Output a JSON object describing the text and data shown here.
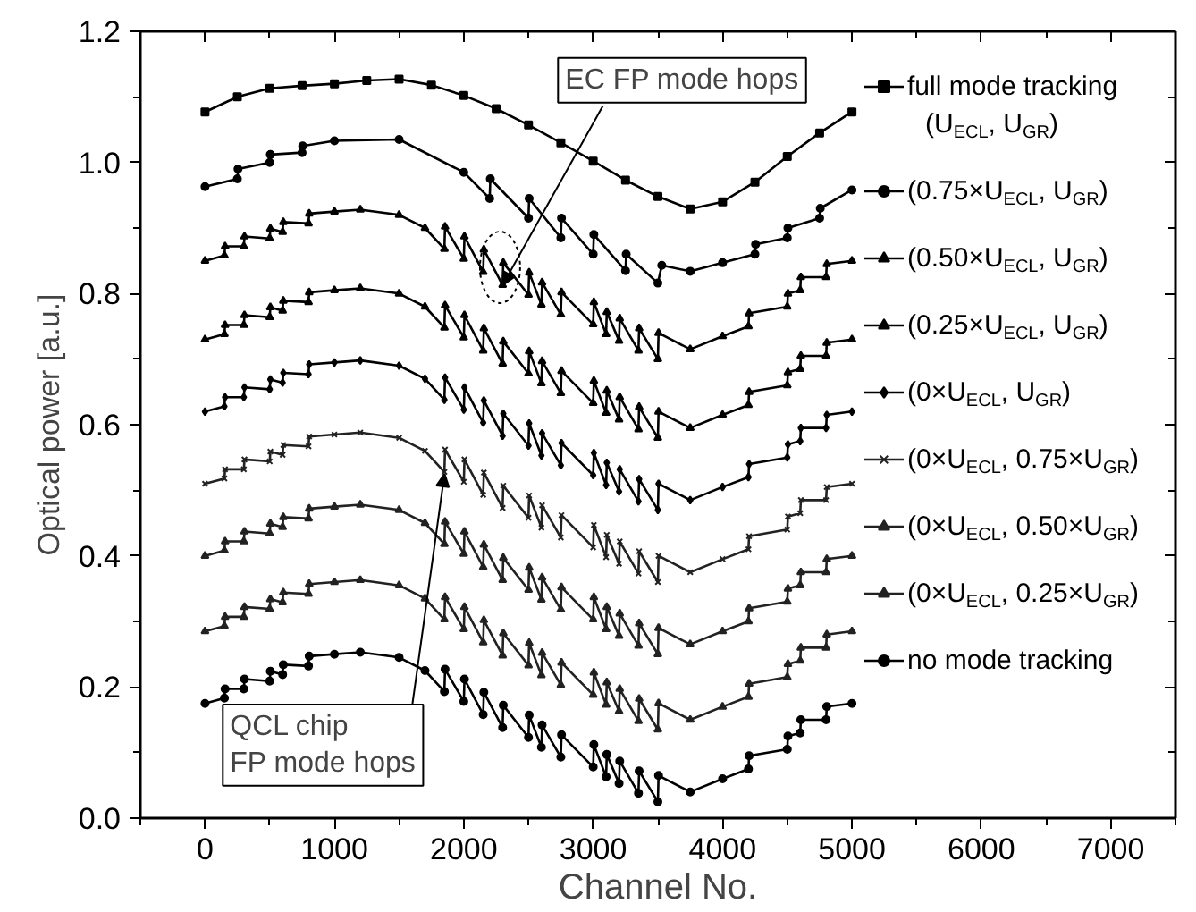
{
  "chart_data": {
    "type": "line",
    "xlabel": "Channel No.",
    "ylabel": "Optical power [a.u.]",
    "xlim": [
      -500,
      7500
    ],
    "ylim": [
      0,
      1.2
    ],
    "xticks": [
      {
        "value": -500,
        "label": null
      },
      0,
      {
        "value": 500,
        "label": null
      },
      1000,
      {
        "value": 1500,
        "label": null
      },
      2000,
      {
        "value": 2500,
        "label": null
      },
      3000,
      {
        "value": 3500,
        "label": null
      },
      4000,
      {
        "value": 4500,
        "label": null
      },
      5000,
      {
        "value": 5500,
        "label": null
      },
      6000,
      {
        "value": 6500,
        "label": null
      },
      7000,
      {
        "value": 7500,
        "label": null
      }
    ],
    "yticks": [
      {
        "value": 0,
        "label": "0.0"
      },
      {
        "value": 0.1,
        "label": null
      },
      {
        "value": 0.2,
        "label": "0.2"
      },
      {
        "value": 0.3,
        "label": null
      },
      {
        "value": 0.4,
        "label": "0.4"
      },
      {
        "value": 0.5,
        "label": null
      },
      {
        "value": 0.6,
        "label": "0.6"
      },
      {
        "value": 0.7,
        "label": null
      },
      {
        "value": 0.8,
        "label": "0.8"
      },
      {
        "value": 0.9,
        "label": null
      },
      {
        "value": 1.0,
        "label": "1.0"
      },
      {
        "value": 1.1,
        "label": null
      },
      {
        "value": 1.2,
        "label": "1.2"
      }
    ],
    "grid": false,
    "legend": "right",
    "line_style": "solid",
    "annotations": [
      {
        "text": "EC FP mode hops",
        "x": 2300,
        "y": 0.813
      },
      {
        "text": "QCL chip\nFP mode hops",
        "x": 1851,
        "y": 0.525
      }
    ],
    "x": [
      0,
      150,
      155,
      300,
      305,
      500,
      505,
      600,
      605,
      800,
      805,
      1000,
      1200,
      1500,
      1700,
      1850,
      1855,
      2000,
      2005,
      2150,
      2155,
      2300,
      2305,
      2500,
      2505,
      2600,
      2605,
      2750,
      2755,
      3000,
      3005,
      3100,
      3105,
      3200,
      3205,
      3350,
      3355,
      3500,
      3505,
      3750,
      4000,
      4200,
      4205,
      4500,
      4505,
      4600,
      4605,
      4800,
      4805,
      5000
    ],
    "series": [
      {
        "name": "full mode tracking\n(U$_{ECL}$, U$_{GR}$)",
        "color": "#000000",
        "marker": "square",
        "x": [
          0,
          250,
          500,
          750,
          1000,
          1250,
          1500,
          1750,
          2000,
          2250,
          2500,
          2750,
          3000,
          3250,
          3500,
          3750,
          4000,
          4250,
          4500,
          4750,
          5000
        ],
        "values": [
          1.077,
          1.1,
          1.113,
          1.117,
          1.12,
          1.125,
          1.127,
          1.118,
          1.102,
          1.082,
          1.057,
          1.03,
          1.002,
          0.973,
          0.948,
          0.929,
          0.94,
          0.97,
          1.009,
          1.045,
          1.077
        ]
      },
      {
        "name": "(0.75×U$_{ECL}$, U$_{GR}$)",
        "color": "#000000",
        "marker": "circle",
        "x": [
          0,
          250,
          255,
          500,
          505,
          750,
          755,
          1000,
          1500,
          2000,
          2200,
          2205,
          2500,
          2505,
          2750,
          2755,
          3000,
          3005,
          3250,
          3255,
          3500,
          3530,
          3750,
          4000,
          4250,
          4255,
          4500,
          4505,
          4750,
          4755,
          5000
        ],
        "values": [
          0.963,
          0.975,
          0.99,
          1.0,
          1.012,
          1.015,
          1.025,
          1.033,
          1.035,
          0.985,
          0.945,
          0.975,
          0.915,
          0.945,
          0.885,
          0.915,
          0.86,
          0.89,
          0.835,
          0.86,
          0.816,
          0.843,
          0.834,
          0.847,
          0.86,
          0.875,
          0.885,
          0.9,
          0.915,
          0.93,
          0.958
        ]
      },
      {
        "name": "(0.50×U$_{ECL}$, U$_{GR}$)",
        "color": "#000000",
        "marker": "triangle",
        "values": [
          0.85,
          0.858,
          0.872,
          0.872,
          0.887,
          0.884,
          0.899,
          0.894,
          0.909,
          0.907,
          0.922,
          0.925,
          0.928,
          0.92,
          0.9,
          0.868,
          0.902,
          0.853,
          0.887,
          0.833,
          0.867,
          0.813,
          0.847,
          0.798,
          0.832,
          0.783,
          0.817,
          0.768,
          0.802,
          0.753,
          0.787,
          0.738,
          0.772,
          0.728,
          0.762,
          0.713,
          0.747,
          0.7,
          0.74,
          0.715,
          0.735,
          0.75,
          0.77,
          0.78,
          0.8,
          0.805,
          0.825,
          0.825,
          0.845,
          0.85
        ]
      },
      {
        "name": "(0.25×U$_{ECL}$, U$_{GR}$)",
        "color": "#000000",
        "marker": "triangle",
        "values": [
          0.73,
          0.738,
          0.752,
          0.752,
          0.767,
          0.764,
          0.779,
          0.774,
          0.789,
          0.787,
          0.802,
          0.805,
          0.808,
          0.8,
          0.78,
          0.748,
          0.782,
          0.733,
          0.767,
          0.713,
          0.747,
          0.693,
          0.727,
          0.678,
          0.712,
          0.663,
          0.697,
          0.648,
          0.682,
          0.633,
          0.667,
          0.618,
          0.652,
          0.608,
          0.642,
          0.593,
          0.627,
          0.58,
          0.62,
          0.595,
          0.615,
          0.63,
          0.65,
          0.66,
          0.68,
          0.685,
          0.705,
          0.705,
          0.725,
          0.73
        ]
      },
      {
        "name": "(0×U$_{ECL}$, U$_{GR}$)",
        "color": "#000000",
        "marker": "diamond",
        "values": [
          0.62,
          0.628,
          0.642,
          0.642,
          0.657,
          0.654,
          0.669,
          0.664,
          0.679,
          0.677,
          0.692,
          0.695,
          0.698,
          0.69,
          0.67,
          0.638,
          0.672,
          0.623,
          0.657,
          0.603,
          0.637,
          0.583,
          0.617,
          0.568,
          0.602,
          0.553,
          0.587,
          0.538,
          0.572,
          0.523,
          0.557,
          0.508,
          0.542,
          0.498,
          0.532,
          0.483,
          0.517,
          0.47,
          0.51,
          0.485,
          0.505,
          0.52,
          0.54,
          0.55,
          0.57,
          0.575,
          0.595,
          0.595,
          0.615,
          0.62
        ]
      },
      {
        "name": "(0×U$_{ECL}$, 0.75×U$_{GR}$)",
        "color": "#222222",
        "marker": "cross",
        "values": [
          0.51,
          0.518,
          0.532,
          0.532,
          0.547,
          0.544,
          0.559,
          0.554,
          0.569,
          0.567,
          0.582,
          0.585,
          0.588,
          0.58,
          0.56,
          0.528,
          0.562,
          0.513,
          0.547,
          0.493,
          0.527,
          0.473,
          0.507,
          0.458,
          0.492,
          0.443,
          0.477,
          0.428,
          0.462,
          0.413,
          0.447,
          0.398,
          0.432,
          0.388,
          0.422,
          0.373,
          0.407,
          0.36,
          0.4,
          0.375,
          0.395,
          0.41,
          0.43,
          0.44,
          0.46,
          0.465,
          0.485,
          0.485,
          0.505,
          0.51
        ]
      },
      {
        "name": "(0×U$_{ECL}$, 0.50×U$_{GR}$)",
        "color": "#222222",
        "marker": "triangle",
        "values": [
          0.4,
          0.408,
          0.422,
          0.422,
          0.437,
          0.434,
          0.449,
          0.444,
          0.459,
          0.457,
          0.472,
          0.475,
          0.478,
          0.47,
          0.45,
          0.418,
          0.452,
          0.403,
          0.437,
          0.383,
          0.417,
          0.363,
          0.397,
          0.348,
          0.382,
          0.333,
          0.367,
          0.318,
          0.352,
          0.303,
          0.337,
          0.288,
          0.322,
          0.278,
          0.312,
          0.263,
          0.297,
          0.25,
          0.29,
          0.265,
          0.285,
          0.3,
          0.32,
          0.33,
          0.35,
          0.355,
          0.375,
          0.375,
          0.395,
          0.4
        ]
      },
      {
        "name": "(0×U$_{ECL}$, 0.25×U$_{GR}$)",
        "color": "#222222",
        "marker": "triangle",
        "values": [
          0.285,
          0.293,
          0.307,
          0.307,
          0.322,
          0.319,
          0.334,
          0.329,
          0.344,
          0.342,
          0.357,
          0.36,
          0.363,
          0.355,
          0.335,
          0.303,
          0.337,
          0.288,
          0.322,
          0.268,
          0.302,
          0.248,
          0.282,
          0.233,
          0.267,
          0.218,
          0.252,
          0.203,
          0.237,
          0.188,
          0.222,
          0.173,
          0.207,
          0.163,
          0.197,
          0.148,
          0.182,
          0.135,
          0.175,
          0.15,
          0.17,
          0.185,
          0.205,
          0.215,
          0.235,
          0.24,
          0.26,
          0.26,
          0.28,
          0.285
        ]
      },
      {
        "name": "no mode tracking",
        "color": "#000000",
        "marker": "circle",
        "values": [
          0.175,
          0.183,
          0.197,
          0.197,
          0.212,
          0.209,
          0.224,
          0.219,
          0.234,
          0.232,
          0.247,
          0.25,
          0.253,
          0.245,
          0.225,
          0.193,
          0.227,
          0.178,
          0.212,
          0.158,
          0.192,
          0.138,
          0.172,
          0.123,
          0.157,
          0.108,
          0.142,
          0.093,
          0.127,
          0.078,
          0.112,
          0.063,
          0.097,
          0.053,
          0.087,
          0.038,
          0.072,
          0.025,
          0.065,
          0.04,
          0.06,
          0.075,
          0.095,
          0.105,
          0.125,
          0.13,
          0.15,
          0.15,
          0.17,
          0.175
        ]
      }
    ]
  }
}
